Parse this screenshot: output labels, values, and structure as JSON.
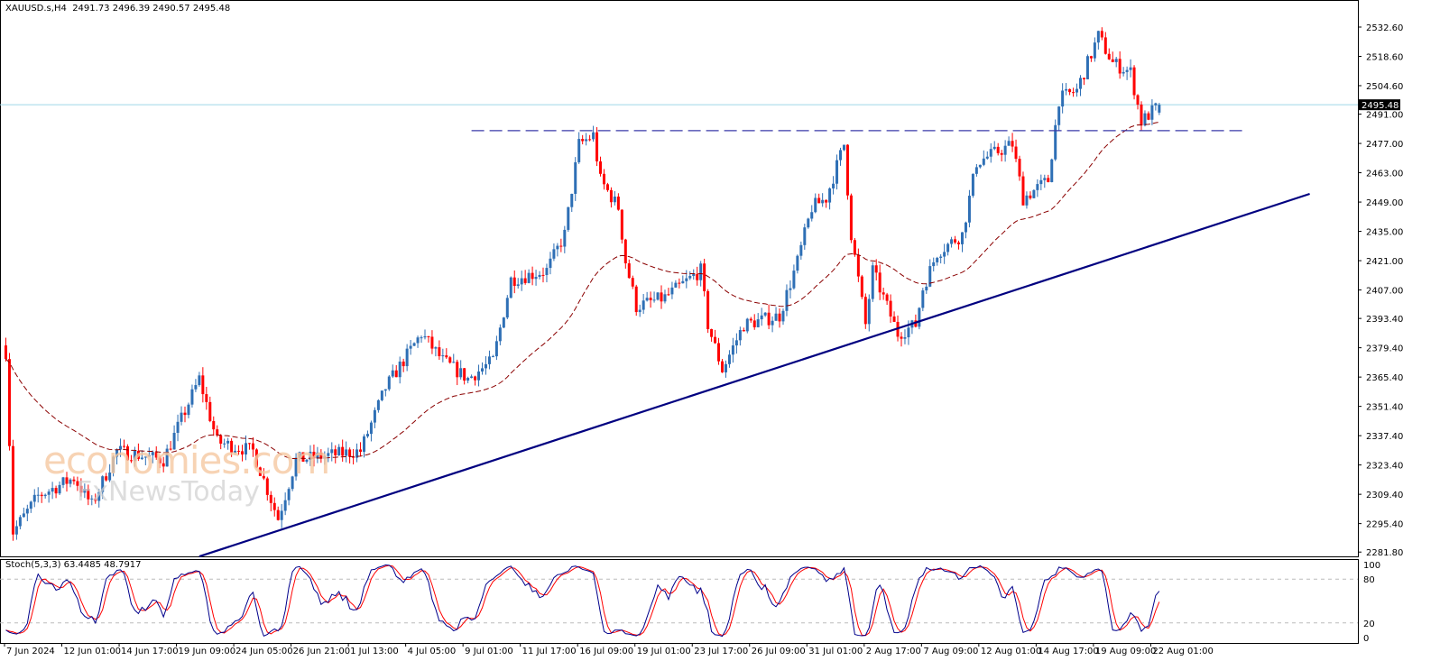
{
  "header": {
    "symbol": "XAUUSD.s,H4",
    "open": "2491.73",
    "high": "2496.39",
    "low": "2490.57",
    "close": "2495.48"
  },
  "watermark": {
    "line1": "economies.com",
    "line2": "FxNewsToday"
  },
  "colors": {
    "bull": "#2e6fb5",
    "bear": "#ff0000",
    "ma": "#8b0000",
    "trend": "#000080",
    "hline": "#3a3aa8",
    "bid": "#9fd8e6",
    "stochMain": "#00008b",
    "stochSignal": "#ff0000"
  },
  "chart_data": {
    "type": "candlestick",
    "symbol": "XAUUSD.s",
    "timeframe": "H4",
    "ylim": [
      2281.8,
      2537
    ],
    "y_ticks": [
      "2532.60",
      "2518.60",
      "2504.60",
      "2491.00",
      "2477.00",
      "2463.00",
      "2449.00",
      "2435.00",
      "2421.00",
      "2407.00",
      "2393.40",
      "2379.40",
      "2365.40",
      "2351.40",
      "2337.40",
      "2323.40",
      "2309.40",
      "2295.40",
      "2281.80"
    ],
    "current_price": "2495.48",
    "price_path": [
      [
        0,
        2377.5
      ],
      [
        2,
        2291.4
      ],
      [
        9,
        2308.6
      ],
      [
        19,
        2317.2
      ],
      [
        24,
        2304.3
      ],
      [
        31,
        2330.1
      ],
      [
        44,
        2325.8
      ],
      [
        54,
        2364.6
      ],
      [
        59,
        2334.4
      ],
      [
        69,
        2330.1
      ],
      [
        76,
        2297.8
      ],
      [
        81,
        2325.8
      ],
      [
        99,
        2330.1
      ],
      [
        106,
        2360.3
      ],
      [
        116,
        2386.1
      ],
      [
        122,
        2373.2
      ],
      [
        129,
        2364.6
      ],
      [
        136,
        2373.2
      ],
      [
        141,
        2412.0
      ],
      [
        151,
        2416.3
      ],
      [
        156,
        2433.5
      ],
      [
        160,
        2476.6
      ],
      [
        164,
        2480.9
      ],
      [
        166,
        2459.4
      ],
      [
        171,
        2446.4
      ],
      [
        173,
        2420.6
      ],
      [
        176,
        2399.1
      ],
      [
        184,
        2403.4
      ],
      [
        194,
        2416.3
      ],
      [
        196,
        2390.4
      ],
      [
        200,
        2368.9
      ],
      [
        206,
        2390.4
      ],
      [
        216,
        2394.7
      ],
      [
        221,
        2420.6
      ],
      [
        225,
        2446.4
      ],
      [
        229,
        2450.8
      ],
      [
        234,
        2476.6
      ],
      [
        236,
        2433.5
      ],
      [
        240,
        2390.4
      ],
      [
        242,
        2416.3
      ],
      [
        249,
        2386.1
      ],
      [
        254,
        2390.4
      ],
      [
        256,
        2407.7
      ],
      [
        260,
        2424.9
      ],
      [
        267,
        2433.5
      ],
      [
        271,
        2468.0
      ],
      [
        281,
        2476.6
      ],
      [
        284,
        2450.8
      ],
      [
        291,
        2459.4
      ],
      [
        294,
        2498.1
      ],
      [
        299,
        2502.4
      ],
      [
        305,
        2528.3
      ],
      [
        309,
        2515.4
      ],
      [
        314,
        2511.1
      ],
      [
        317,
        2487.4
      ],
      [
        322,
        2495.48
      ]
    ],
    "trendline": {
      "from": [
        54,
        2279.7
      ],
      "to": [
        364,
        2452.9
      ]
    },
    "resistance": {
      "price": 2483.1,
      "from_bar": 130,
      "to_bar": 346
    },
    "moving_average": {
      "type": "EMA",
      "period": 50
    },
    "x_labels": [
      "7 Jun 2024",
      "12 Jun 01:00",
      "14 Jun 17:00",
      "19 Jun 09:00",
      "24 Jun 05:00",
      "26 Jun 21:00",
      "1 Jul 13:00",
      "4 Jul 05:00",
      "9 Jul 01:00",
      "11 Jul 17:00",
      "16 Jul 09:00",
      "19 Jul 01:00",
      "23 Jul 17:00",
      "26 Jul 09:00",
      "31 Jul 01:00",
      "2 Aug 17:00",
      "7 Aug 09:00",
      "12 Aug 01:00",
      "14 Aug 17:00",
      "19 Aug 09:00",
      "22 Aug 01:00"
    ],
    "x_label_every_bars": 16,
    "stochastic": {
      "label": "Stoch(5,3,3) 63.4485 48.7917",
      "k": 63.4485,
      "d": 48.7917,
      "levels": [
        20,
        80
      ],
      "axis": [
        "100",
        "80",
        "20",
        "0"
      ]
    }
  }
}
